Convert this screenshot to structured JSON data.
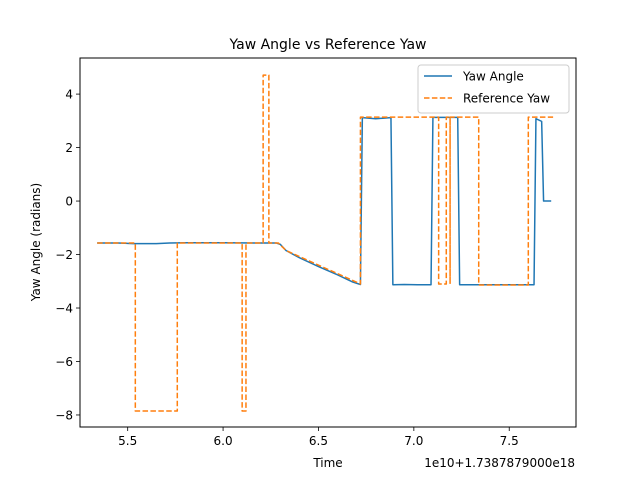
{
  "chart_data": {
    "type": "line",
    "title": "Yaw Angle vs Reference Yaw",
    "xlabel": "Time",
    "ylabel": "Yaw Angle (radians)",
    "x_offset_label": "1e10+1.7387879000e18",
    "xlim": [
      5.25,
      7.85
    ],
    "ylim": [
      -8.45,
      5.35
    ],
    "xticks": [
      5.5,
      6.0,
      6.5,
      7.0,
      7.5
    ],
    "xtick_labels": [
      "5.5",
      "6.0",
      "6.5",
      "7.0",
      "7.5"
    ],
    "yticks": [
      -8,
      -6,
      -4,
      -2,
      0,
      2,
      4
    ],
    "ytick_labels": [
      "−8",
      "−6",
      "−4",
      "−2",
      "0",
      "2",
      "4"
    ],
    "grid": false,
    "legend_position": "upper right",
    "series": [
      {
        "name": "Yaw Angle",
        "color": "#1f77b4",
        "dash": "solid",
        "points": [
          [
            5.34,
            -1.57
          ],
          [
            5.45,
            -1.57
          ],
          [
            5.53,
            -1.59
          ],
          [
            5.65,
            -1.59
          ],
          [
            5.72,
            -1.57
          ],
          [
            5.8,
            -1.56
          ],
          [
            6.0,
            -1.56
          ],
          [
            6.2,
            -1.57
          ],
          [
            6.28,
            -1.57
          ],
          [
            6.3,
            -1.62
          ],
          [
            6.33,
            -1.85
          ],
          [
            6.4,
            -2.12
          ],
          [
            6.5,
            -2.45
          ],
          [
            6.6,
            -2.76
          ],
          [
            6.68,
            -3.03
          ],
          [
            6.72,
            -3.12
          ],
          [
            6.73,
            3.12
          ],
          [
            6.8,
            3.08
          ],
          [
            6.88,
            3.12
          ],
          [
            6.89,
            -3.13
          ],
          [
            6.95,
            -3.12
          ],
          [
            7.02,
            -3.13
          ],
          [
            7.09,
            -3.13
          ],
          [
            7.1,
            3.13
          ],
          [
            7.14,
            3.13
          ],
          [
            7.23,
            3.13
          ],
          [
            7.24,
            -3.13
          ],
          [
            7.4,
            -3.13
          ],
          [
            7.63,
            -3.13
          ],
          [
            7.64,
            3.08
          ],
          [
            7.67,
            2.98
          ],
          [
            7.68,
            0.0
          ],
          [
            7.72,
            0.0
          ]
        ]
      },
      {
        "name": "Reference Yaw",
        "color": "#ff7f0e",
        "dash": "dashed",
        "points": [
          [
            5.34,
            -1.57
          ],
          [
            5.54,
            -1.57
          ],
          [
            5.54,
            -7.85
          ],
          [
            5.76,
            -7.85
          ],
          [
            5.76,
            -1.57
          ],
          [
            6.1,
            -1.57
          ],
          [
            6.1,
            -7.85
          ],
          [
            6.12,
            -7.85
          ],
          [
            6.12,
            -1.57
          ],
          [
            6.21,
            -1.57
          ],
          [
            6.21,
            4.71
          ],
          [
            6.24,
            4.71
          ],
          [
            6.24,
            -1.57
          ],
          [
            6.29,
            -1.57
          ],
          [
            6.33,
            -1.85
          ],
          [
            6.72,
            -3.1
          ],
          [
            6.72,
            3.14
          ],
          [
            7.13,
            3.14
          ],
          [
            7.13,
            -3.1
          ],
          [
            7.17,
            -3.1
          ],
          [
            7.17,
            3.14
          ],
          [
            7.19,
            3.14
          ],
          [
            7.19,
            -3.1
          ],
          [
            7.19,
            3.14
          ],
          [
            7.34,
            3.14
          ],
          [
            7.34,
            -3.14
          ],
          [
            7.6,
            -3.14
          ],
          [
            7.6,
            3.14
          ],
          [
            7.73,
            3.14
          ]
        ]
      }
    ]
  }
}
